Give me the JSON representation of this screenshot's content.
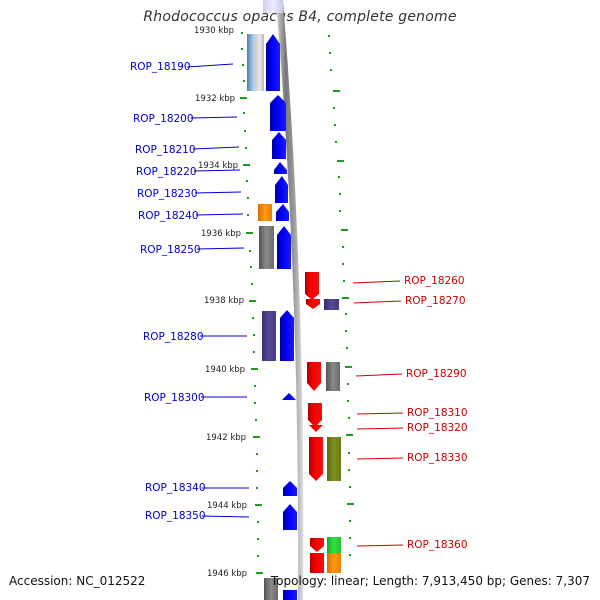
{
  "title": "Rhodococcus opacus B4, complete genome",
  "footer": {
    "accession": "Accession: NC_012522",
    "topology": "Topology: linear; Length: 7,913,450 bp; Genes: 7,307"
  },
  "colors": {
    "forward_label": "#0000cc",
    "reverse_label": "#cc0000",
    "backbone": "#888888",
    "tick": "#22aa22"
  },
  "kbp_labels": [
    "1930 kbp",
    "1932 kbp",
    "1934 kbp",
    "1936 kbp",
    "1938 kbp",
    "1940 kbp",
    "1942 kbp",
    "1944 kbp",
    "1946 kbp"
  ],
  "forward_genes": [
    "ROP_18190",
    "ROP_18200",
    "ROP_18210",
    "ROP_18220",
    "ROP_18230",
    "ROP_18240",
    "ROP_18250",
    "ROP_18280",
    "ROP_18300",
    "ROP_18340",
    "ROP_18350"
  ],
  "reverse_genes": [
    "ROP_18260",
    "ROP_18270",
    "ROP_18290",
    "ROP_18310",
    "ROP_18320",
    "ROP_18330",
    "ROP_18360"
  ]
}
